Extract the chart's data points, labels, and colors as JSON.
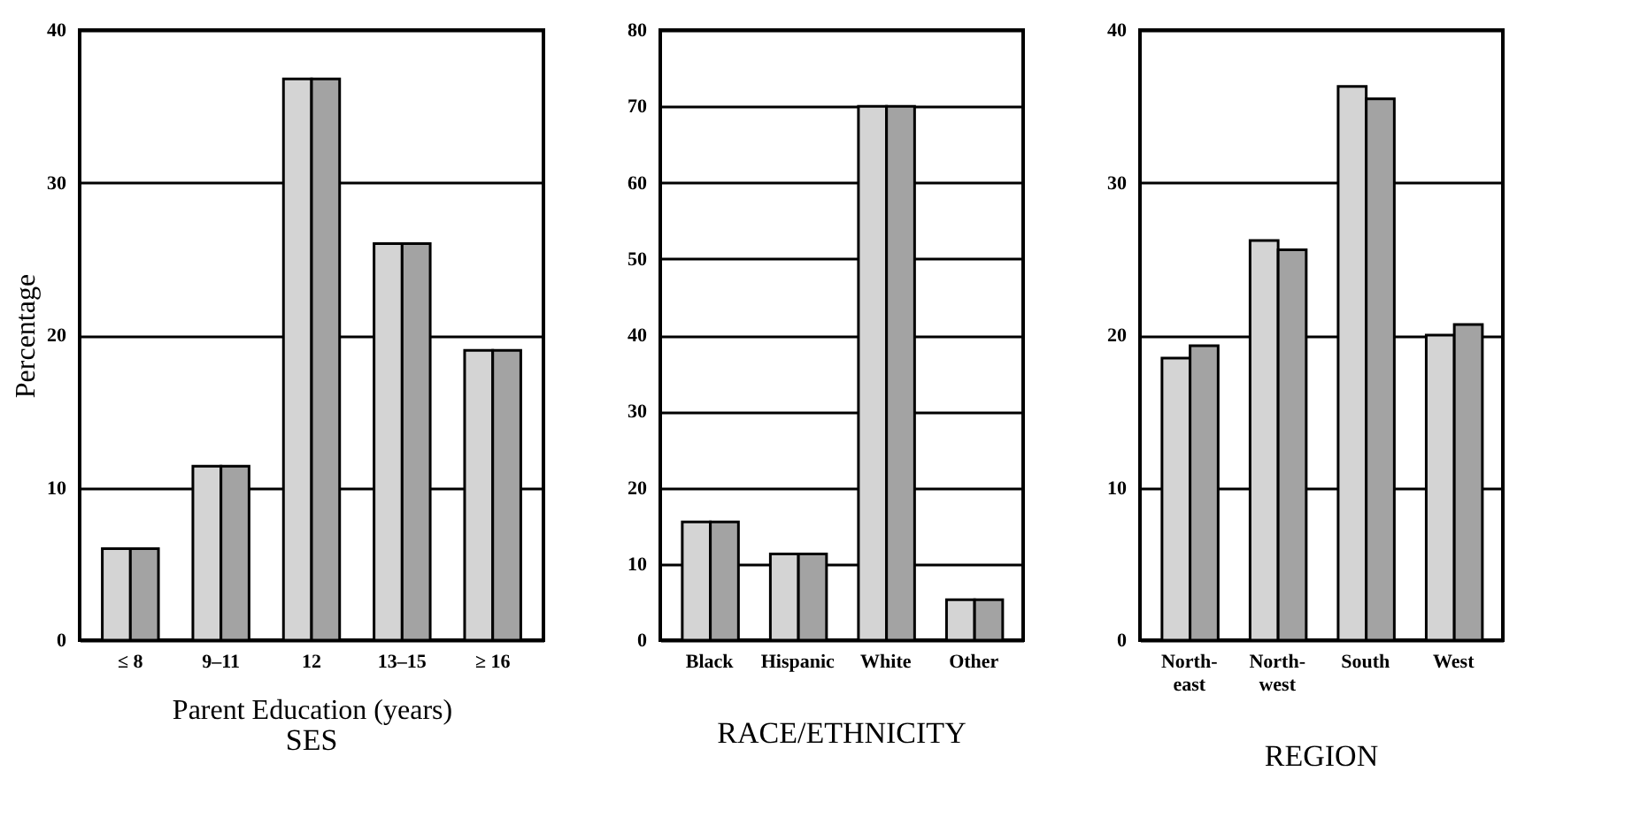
{
  "chart_data": [
    {
      "type": "bar",
      "title": "SES",
      "xlabel": "Parent Education (years)",
      "ylabel": "Percentage",
      "categories": [
        "≤ 8",
        "9–11",
        "12",
        "13–15",
        "≥ 16"
      ],
      "series": [
        {
          "color": "#d4d4d4",
          "values": [
            6,
            11.4,
            36.8,
            26,
            19
          ]
        },
        {
          "color": "#a3a3a3",
          "values": [
            6,
            11.4,
            36.8,
            26,
            19
          ]
        }
      ],
      "ylim": [
        0,
        40
      ],
      "yticks": [
        0,
        10,
        20,
        30,
        40
      ],
      "grid": "y",
      "legend": false
    },
    {
      "type": "bar",
      "title": "RACE/ETHNICITY",
      "categories": [
        "Black",
        "Hispanic",
        "White",
        "Other"
      ],
      "series": [
        {
          "color": "#d4d4d4",
          "values": [
            15.5,
            11.3,
            70,
            5.3
          ]
        },
        {
          "color": "#a3a3a3",
          "values": [
            15.5,
            11.3,
            70,
            5.3
          ]
        }
      ],
      "ylim": [
        0,
        80
      ],
      "yticks": [
        0,
        10,
        20,
        30,
        40,
        50,
        60,
        70,
        80
      ],
      "grid": "y",
      "legend": false
    },
    {
      "type": "bar",
      "title": "REGION",
      "categories": [
        "North-\neast",
        "North-\nwest",
        "South",
        "West"
      ],
      "series": [
        {
          "color": "#d4d4d4",
          "values": [
            18.5,
            26.2,
            36.3,
            20
          ]
        },
        {
          "color": "#a3a3a3",
          "values": [
            19.3,
            25.6,
            35.5,
            20.7
          ]
        }
      ],
      "ylim": [
        0,
        40
      ],
      "yticks": [
        0,
        10,
        20,
        30,
        40
      ],
      "grid": "y",
      "legend": false
    }
  ]
}
